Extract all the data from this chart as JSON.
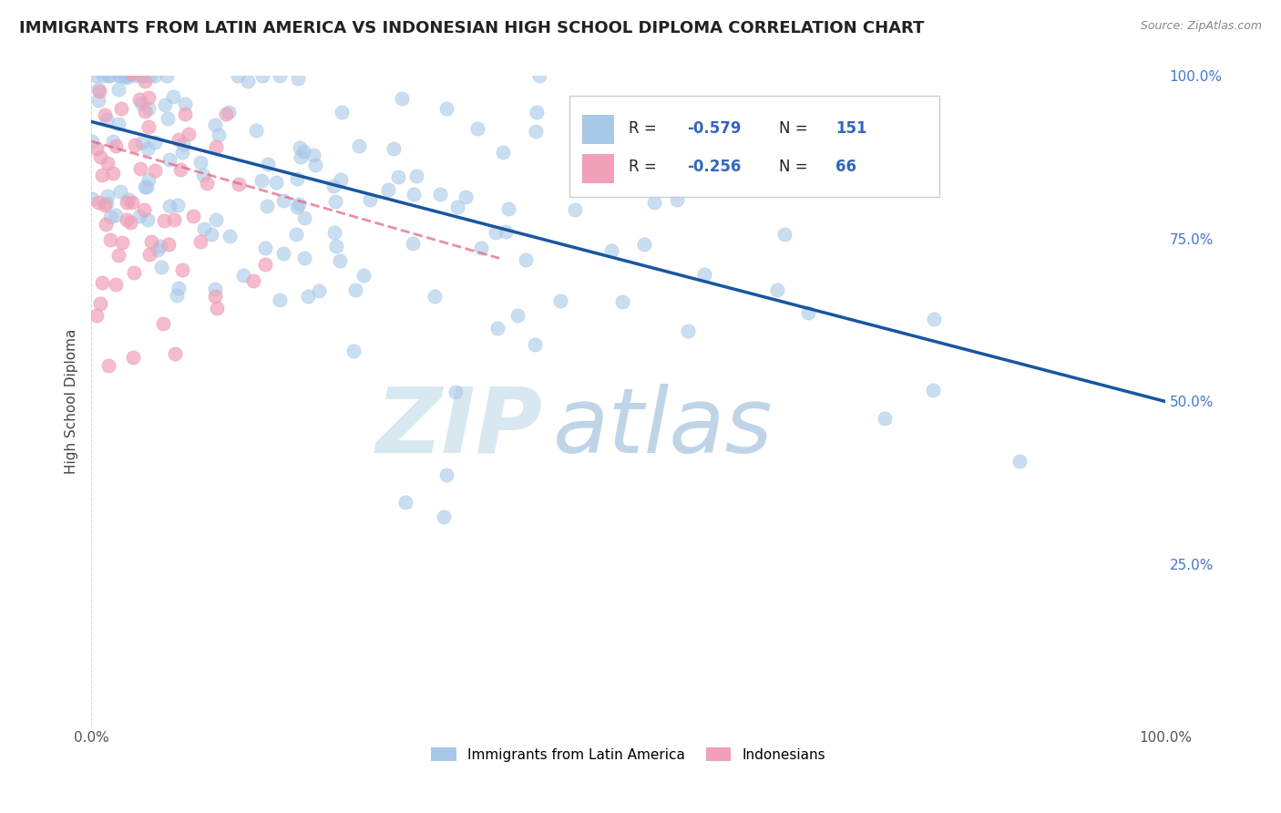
{
  "title": "IMMIGRANTS FROM LATIN AMERICA VS INDONESIAN HIGH SCHOOL DIPLOMA CORRELATION CHART",
  "source": "Source: ZipAtlas.com",
  "ylabel": "High School Diploma",
  "series1_label": "Immigrants from Latin America",
  "series1_color": "#a8c8e8",
  "series1_edge_color": "#a8c8e8",
  "series1_line_color": "#1a55a0",
  "series1_R": -0.579,
  "series1_N": 151,
  "series2_label": "Indonesians",
  "series2_color": "#f0a0b8",
  "series2_edge_color": "#f0a0b8",
  "series2_line_color": "#e06080",
  "series2_R": -0.256,
  "series2_N": 66,
  "background_color": "#ffffff",
  "watermark_zip": "ZIP",
  "watermark_atlas": "atlas",
  "watermark_color": "#d0dff0",
  "grid_color": "#c8d4e0",
  "xlim": [
    0.0,
    1.0
  ],
  "ylim": [
    0.0,
    1.0
  ],
  "right_ytick_labels": [
    "25.0%",
    "50.0%",
    "75.0%",
    "100.0%"
  ],
  "right_ytick_values": [
    0.25,
    0.5,
    0.75,
    1.0
  ],
  "title_fontsize": 13,
  "label_fontsize": 11,
  "legend_text_color": "#222222",
  "legend_value_color": "#3366bb"
}
